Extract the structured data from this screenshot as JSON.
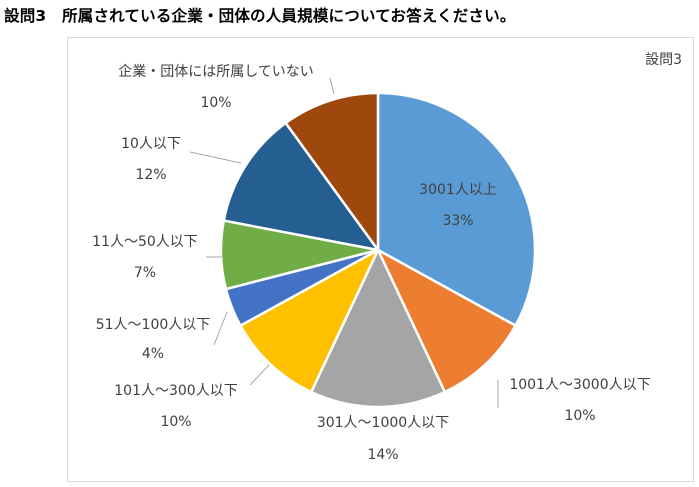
{
  "question_title": "設問3　所属されている企業・団体の人員規模についてお答えください。",
  "chart_data": {
    "type": "pie",
    "title": "設問3",
    "categories": [
      "3001人以上",
      "1001人～3000人以下",
      "301人～1000人以下",
      "101人～300人以下",
      "51人～100人以下",
      "11人～50人以下",
      "10人以下",
      "企業・団体には所属していない"
    ],
    "values": [
      33,
      10,
      14,
      10,
      4,
      7,
      12,
      10
    ],
    "value_labels": [
      "33%",
      "10%",
      "14%",
      "10%",
      "4%",
      "7%",
      "12%",
      "10%"
    ],
    "colors": [
      "#5b9bd5",
      "#ed7d31",
      "#a5a5a5",
      "#ffc000",
      "#4472c4",
      "#70ad47",
      "#255e91",
      "#9e480e"
    ],
    "start_angle_deg": 0,
    "direction": "clockwise",
    "legend": "none",
    "data_labels": "category and percent"
  }
}
